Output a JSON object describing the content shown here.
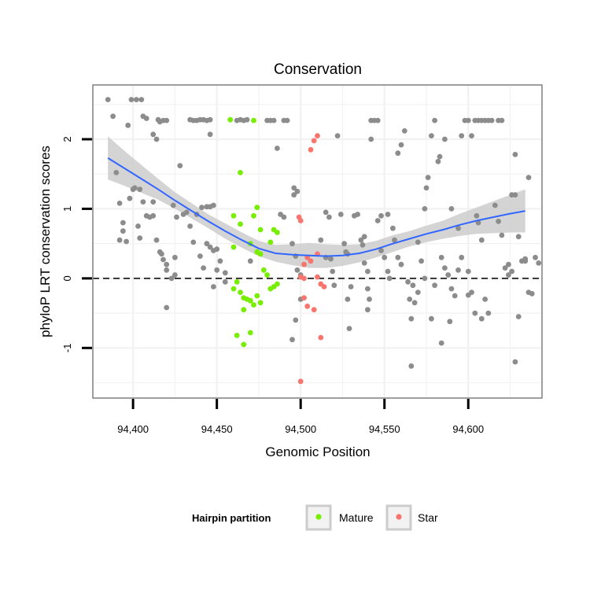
{
  "chart_data": {
    "type": "scatter",
    "title": "Conservation",
    "xlabel": "Genomic Position",
    "ylabel": "phyloP LRT conservation scores",
    "xlim": [
      94376,
      94644
    ],
    "ylim": [
      -1.72,
      2.78
    ],
    "x_ticks": [
      94400,
      94450,
      94500,
      94550,
      94600
    ],
    "x_tick_labels": [
      "94,400",
      "94,450",
      "94,500",
      "94,550",
      "94,600"
    ],
    "y_ticks": [
      -1,
      0,
      1,
      2
    ],
    "y_tick_labels": [
      "-1",
      "0",
      "1",
      "2"
    ],
    "grid": true,
    "reference_line": {
      "y": 0,
      "style": "dashed"
    },
    "legend": {
      "title": "Hairpin partition",
      "position": "bottom",
      "entries": [
        {
          "name": "Mature",
          "color": "#77ee00"
        },
        {
          "name": "Star",
          "color": "#f8766d"
        }
      ]
    },
    "colors": {
      "other": "#8c8c8c",
      "smooth_line": "#3366ff",
      "ribbon": "#cccccc"
    },
    "series": [
      {
        "name": "",
        "color": "#8c8c8c",
        "points": [
          [
            94385,
            2.57
          ],
          [
            94388,
            2.33
          ],
          [
            94390,
            1.52
          ],
          [
            94392,
            1.08
          ],
          [
            94394,
            0.8
          ],
          [
            94396,
            0.53
          ],
          [
            94392,
            0.55
          ],
          [
            94394,
            0.68
          ],
          [
            94397,
            2.2
          ],
          [
            94399,
            2.57
          ],
          [
            94402,
            2.57
          ],
          [
            94405,
            2.57
          ],
          [
            94400,
            1.28
          ],
          [
            94404,
            1.28
          ],
          [
            94398,
            1.15
          ],
          [
            94401,
            1.3
          ],
          [
            94403,
            0.75
          ],
          [
            94404,
            0.58
          ],
          [
            94406,
            2.33
          ],
          [
            94408,
            2.3
          ],
          [
            94406,
            1.1
          ],
          [
            94408,
            0.9
          ],
          [
            94410,
            0.88
          ],
          [
            94412,
            0.9
          ],
          [
            94415,
            2.28
          ],
          [
            94416,
            2.25
          ],
          [
            94418,
            2.27
          ],
          [
            94420,
            2.27
          ],
          [
            94412,
            2.07
          ],
          [
            94414,
            2.0
          ],
          [
            94412,
            1.1
          ],
          [
            94414,
            0.55
          ],
          [
            94416,
            0.38
          ],
          [
            94417,
            0.35
          ],
          [
            94418,
            0.27
          ],
          [
            94420,
            0.2
          ],
          [
            94420,
            0.12
          ],
          [
            94424,
            1.05
          ],
          [
            94426,
            0.88
          ],
          [
            94425,
            0.3
          ],
          [
            94420,
            -0.42
          ],
          [
            94423,
            0.0
          ],
          [
            94425,
            0.05
          ],
          [
            94428,
            1.62
          ],
          [
            94430,
            0.92
          ],
          [
            94432,
            0.95
          ],
          [
            94434,
            2.28
          ],
          [
            94436,
            2.27
          ],
          [
            94438,
            2.27
          ],
          [
            94440,
            2.28
          ],
          [
            94442,
            2.28
          ],
          [
            94444,
            2.27
          ],
          [
            94446,
            2.28
          ],
          [
            94446,
            2.07
          ],
          [
            94434,
            0.75
          ],
          [
            94436,
            0.52
          ],
          [
            94438,
            0.92
          ],
          [
            94441,
            1.02
          ],
          [
            94444,
            1.03
          ],
          [
            94446,
            1.03
          ],
          [
            94448,
            1.05
          ],
          [
            94440,
            0.32
          ],
          [
            94442,
            0.15
          ],
          [
            94444,
            0.5
          ],
          [
            94446,
            0.45
          ],
          [
            94448,
            0.4
          ],
          [
            94450,
            0.42
          ],
          [
            94452,
            0.25
          ],
          [
            94450,
            0.12
          ],
          [
            94455,
            0.08
          ],
          [
            94455,
            -0.05
          ],
          [
            94462,
            2.27
          ],
          [
            94464,
            2.28
          ],
          [
            94466,
            2.27
          ],
          [
            94468,
            2.28
          ],
          [
            94448,
            -0.12
          ],
          [
            94470,
            0.25
          ],
          [
            94480,
            2.27
          ],
          [
            94482,
            2.27
          ],
          [
            94484,
            2.27
          ],
          [
            94490,
            2.27
          ],
          [
            94492,
            2.27
          ],
          [
            94486,
            1.87
          ],
          [
            94488,
            0.92
          ],
          [
            94490,
            0.88
          ],
          [
            94495,
            0.5
          ],
          [
            94496,
            1.3
          ],
          [
            94498,
            1.25
          ],
          [
            94496,
            1.2
          ],
          [
            94497,
            0.32
          ],
          [
            94498,
            0.12
          ],
          [
            94500,
            0.05
          ],
          [
            94500,
            -0.3
          ],
          [
            94497,
            -0.6
          ],
          [
            94495,
            -0.88
          ],
          [
            94512,
            0.55
          ],
          [
            94515,
            0.95
          ],
          [
            94517,
            0.88
          ],
          [
            94515,
            0.3
          ],
          [
            94518,
            0.28
          ],
          [
            94519,
            0.1
          ],
          [
            94520,
            -0.1
          ],
          [
            94522,
            2.05
          ],
          [
            94524,
            0.92
          ],
          [
            94526,
            0.5
          ],
          [
            94527,
            0.38
          ],
          [
            94528,
            0.35
          ],
          [
            94528,
            -0.3
          ],
          [
            94529,
            -0.72
          ],
          [
            94530,
            -0.12
          ],
          [
            94532,
            0.9
          ],
          [
            94534,
            0.92
          ],
          [
            94536,
            0.55
          ],
          [
            94537,
            0.48
          ],
          [
            94538,
            0.6
          ],
          [
            94538,
            0.22
          ],
          [
            94540,
            0.1
          ],
          [
            94540,
            -0.15
          ],
          [
            94541,
            -0.3
          ],
          [
            94540,
            -0.45
          ],
          [
            94542,
            2.27
          ],
          [
            94544,
            2.27
          ],
          [
            94546,
            2.27
          ],
          [
            94542,
            2.0
          ],
          [
            94546,
            0.83
          ],
          [
            94548,
            0.9
          ],
          [
            94552,
            0.92
          ],
          [
            94548,
            0.4
          ],
          [
            94550,
            0.3
          ],
          [
            94552,
            0.1
          ],
          [
            94553,
            0.0
          ],
          [
            94555,
            0.72
          ],
          [
            94556,
            0.55
          ],
          [
            94558,
            0.3
          ],
          [
            94560,
            0.2
          ],
          [
            94560,
            1.92
          ],
          [
            94562,
            2.12
          ],
          [
            94558,
            1.8
          ],
          [
            94564,
            -0.05
          ],
          [
            94565,
            -0.3
          ],
          [
            94566,
            -0.58
          ],
          [
            94566,
            -1.26
          ],
          [
            94567,
            -0.1
          ],
          [
            94568,
            -0.35
          ],
          [
            94570,
            0.52
          ],
          [
            94572,
            0.25
          ],
          [
            94574,
            0.0
          ],
          [
            94574,
            1.0
          ],
          [
            94575,
            1.3
          ],
          [
            94576,
            1.45
          ],
          [
            94578,
            2.05
          ],
          [
            94580,
            2.27
          ],
          [
            94582,
            1.68
          ],
          [
            94583,
            1.75
          ],
          [
            94586,
            2.0
          ],
          [
            94584,
            0.3
          ],
          [
            94586,
            0.15
          ],
          [
            94588,
            0.05
          ],
          [
            94589,
            -0.62
          ],
          [
            94590,
            -0.15
          ],
          [
            94592,
            -0.25
          ],
          [
            94594,
            0.12
          ],
          [
            94584,
            -0.93
          ],
          [
            94578,
            -0.58
          ],
          [
            94580,
            -0.1
          ],
          [
            94570,
            -0.2
          ],
          [
            94590,
            1.0
          ],
          [
            94594,
            0.72
          ],
          [
            94596,
            0.3
          ],
          [
            94598,
            2.27
          ],
          [
            94600,
            2.27
          ],
          [
            94602,
            2.05
          ],
          [
            94604,
            2.27
          ],
          [
            94596,
            2.05
          ],
          [
            94600,
            0.1
          ],
          [
            94602,
            -0.2
          ],
          [
            94604,
            -0.5
          ],
          [
            94600,
            -0.24
          ],
          [
            94605,
            0.9
          ],
          [
            94606,
            0.8
          ],
          [
            94608,
            0.55
          ],
          [
            94610,
            -0.3
          ],
          [
            94612,
            -0.5
          ],
          [
            94608,
            -0.58
          ],
          [
            94606,
            2.27
          ],
          [
            94608,
            2.27
          ],
          [
            94610,
            2.27
          ],
          [
            94612,
            2.27
          ],
          [
            94614,
            2.27
          ],
          [
            94618,
            2.27
          ],
          [
            94620,
            2.27
          ],
          [
            94616,
            1.05
          ],
          [
            94618,
            0.82
          ],
          [
            94620,
            0.62
          ],
          [
            94622,
            0.15
          ],
          [
            94624,
            0.2
          ],
          [
            94626,
            0.1
          ],
          [
            94626,
            1.2
          ],
          [
            94628,
            1.2
          ],
          [
            94630,
            -0.55
          ],
          [
            94628,
            1.78
          ],
          [
            94630,
            0.6
          ],
          [
            94632,
            0.25
          ],
          [
            94634,
            0.25
          ],
          [
            94634,
            0.28
          ],
          [
            94636,
            -0.2
          ],
          [
            94636,
            1.45
          ],
          [
            94638,
            -0.22
          ],
          [
            94640,
            0.3
          ],
          [
            94642,
            0.22
          ],
          [
            94628,
            -1.2
          ],
          [
            94624,
            0.05
          ]
        ]
      },
      {
        "name": "Mature",
        "color": "#77ee00",
        "points": [
          [
            94458,
            2.28
          ],
          [
            94472,
            2.27
          ],
          [
            94464,
            1.52
          ],
          [
            94460,
            0.9
          ],
          [
            94464,
            0.78
          ],
          [
            94472,
            0.9
          ],
          [
            94474,
            1.02
          ],
          [
            94476,
            0.7
          ],
          [
            94482,
            0.52
          ],
          [
            94484,
            0.7
          ],
          [
            94486,
            0.66
          ],
          [
            94470,
            0.5
          ],
          [
            94460,
            0.45
          ],
          [
            94474,
            0.38
          ],
          [
            94476,
            0.35
          ],
          [
            94478,
            0.12
          ],
          [
            94480,
            0.05
          ],
          [
            94482,
            -0.15
          ],
          [
            94484,
            -0.12
          ],
          [
            94486,
            -0.08
          ],
          [
            94462,
            -0.05
          ],
          [
            94460,
            -0.15
          ],
          [
            94464,
            -0.2
          ],
          [
            94466,
            -0.28
          ],
          [
            94468,
            -0.3
          ],
          [
            94470,
            -0.32
          ],
          [
            94472,
            -0.38
          ],
          [
            94474,
            -0.25
          ],
          [
            94476,
            -0.35
          ],
          [
            94466,
            -0.45
          ],
          [
            94462,
            -0.82
          ],
          [
            94466,
            -0.95
          ],
          [
            94470,
            -0.78
          ]
        ]
      },
      {
        "name": "Star",
        "color": "#f8766d",
        "points": [
          [
            94510,
            2.05
          ],
          [
            94508,
            1.98
          ],
          [
            94506,
            1.85
          ],
          [
            94499,
            0.88
          ],
          [
            94500,
            0.83
          ],
          [
            94502,
            0.2
          ],
          [
            94504,
            0.3
          ],
          [
            94506,
            0.25
          ],
          [
            94510,
            0.35
          ],
          [
            94500,
            0.02
          ],
          [
            94502,
            0.0
          ],
          [
            94510,
            0.02
          ],
          [
            94512,
            -0.08
          ],
          [
            94514,
            -0.12
          ],
          [
            94502,
            -0.28
          ],
          [
            94504,
            -0.4
          ],
          [
            94508,
            -0.45
          ],
          [
            94512,
            -0.85
          ],
          [
            94500,
            -1.48
          ]
        ]
      }
    ],
    "smooth": {
      "x": [
        94385,
        94395,
        94405,
        94415,
        94425,
        94435,
        94445,
        94455,
        94465,
        94475,
        94485,
        94495,
        94505,
        94515,
        94525,
        94535,
        94545,
        94555,
        94565,
        94575,
        94585,
        94595,
        94605,
        94615,
        94625,
        94634
      ],
      "y": [
        1.73,
        1.58,
        1.43,
        1.28,
        1.12,
        0.97,
        0.82,
        0.68,
        0.55,
        0.43,
        0.36,
        0.34,
        0.33,
        0.32,
        0.33,
        0.36,
        0.42,
        0.5,
        0.57,
        0.64,
        0.7,
        0.77,
        0.83,
        0.88,
        0.93,
        0.97
      ],
      "lower": [
        1.42,
        1.33,
        1.23,
        1.13,
        1.0,
        0.86,
        0.72,
        0.57,
        0.44,
        0.32,
        0.24,
        0.19,
        0.15,
        0.15,
        0.18,
        0.23,
        0.3,
        0.38,
        0.46,
        0.52,
        0.57,
        0.61,
        0.64,
        0.65,
        0.66,
        0.66
      ],
      "upper": [
        2.04,
        1.83,
        1.63,
        1.43,
        1.24,
        1.08,
        0.92,
        0.79,
        0.66,
        0.54,
        0.48,
        0.49,
        0.51,
        0.49,
        0.48,
        0.49,
        0.54,
        0.62,
        0.68,
        0.76,
        0.83,
        0.93,
        1.02,
        1.11,
        1.2,
        1.28
      ]
    }
  }
}
